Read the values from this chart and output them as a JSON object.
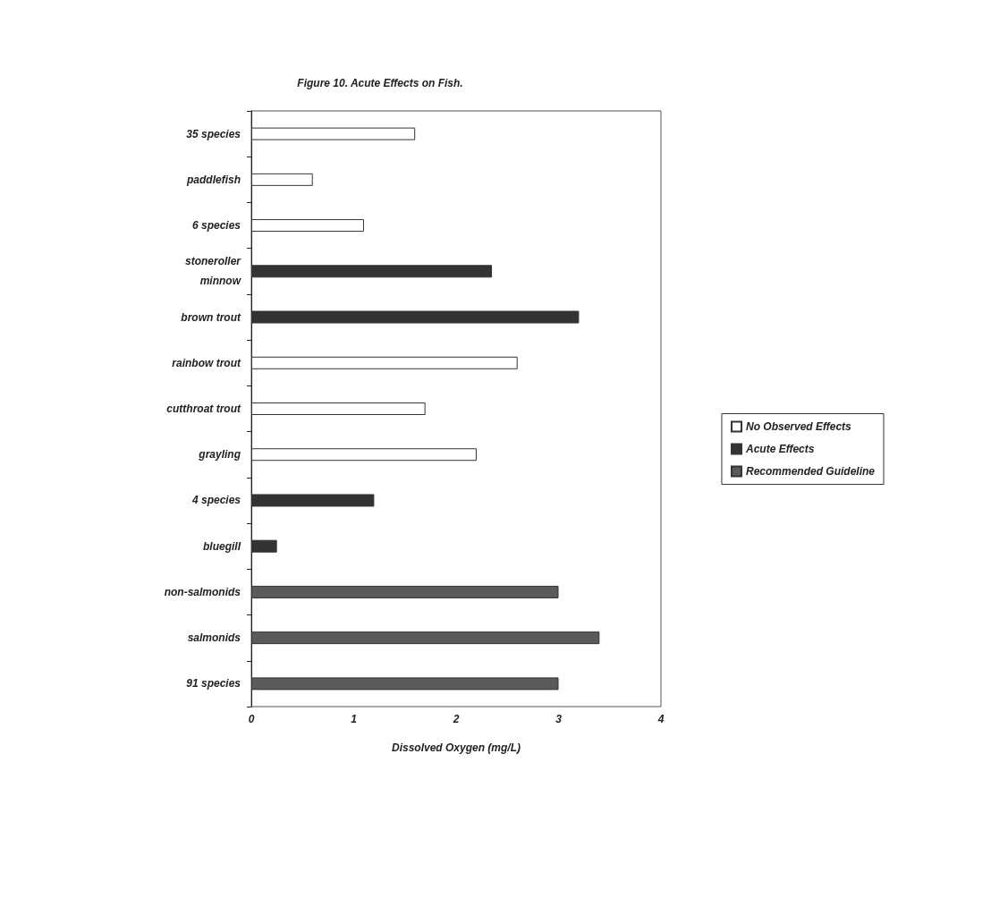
{
  "chart_data": {
    "type": "bar",
    "orientation": "horizontal",
    "title": "Figure 10. Acute Effects on Fish.",
    "xlabel": "Dissolved Oxygen (mg/L)",
    "categories": [
      "35 species",
      "paddlefish",
      "6 species",
      "stoneroller minnow",
      "brown trout",
      "rainbow trout",
      "cutthroat trout",
      "grayling",
      "4 species",
      "bluegill",
      "non-salmonids",
      "salmonids",
      "91 species"
    ],
    "series": [
      {
        "name": "No Observed Effects",
        "color": "#ffffff",
        "values": [
          1.6,
          0.6,
          1.1,
          null,
          null,
          2.6,
          1.7,
          2.2,
          null,
          null,
          null,
          null,
          null
        ]
      },
      {
        "name": "Acute Effects",
        "color": "#333333",
        "values": [
          null,
          null,
          null,
          2.35,
          3.2,
          null,
          null,
          null,
          1.2,
          0.25,
          null,
          null,
          null
        ]
      },
      {
        "name": "Recommended Guideline",
        "color": "#5a5a5a",
        "values": [
          null,
          null,
          null,
          null,
          null,
          null,
          null,
          null,
          null,
          null,
          3.0,
          3.4,
          3.0
        ]
      }
    ],
    "xlim": [
      0,
      4
    ],
    "xticks": [
      0,
      1,
      2,
      3,
      4
    ],
    "grid": false,
    "legend": "right"
  }
}
